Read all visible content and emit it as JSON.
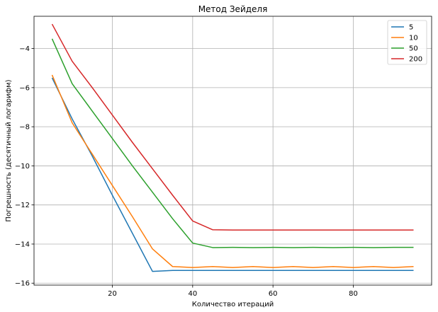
{
  "chart_data": {
    "type": "line",
    "title": "Метод Зейделя",
    "xlabel": "Количество итераций",
    "ylabel": "Погрешность (десятичный логарифм)",
    "xlim": [
      0.5,
      99.5
    ],
    "ylim": [
      -16.1,
      -2.35
    ],
    "xticks": [
      20,
      40,
      60,
      80
    ],
    "yticks": [
      -16,
      -14,
      -12,
      -10,
      -8,
      -6,
      -4
    ],
    "grid": true,
    "legend_position": "top-right",
    "x": [
      5,
      10,
      15,
      20,
      25,
      30,
      35,
      40,
      45,
      50,
      55,
      60,
      65,
      70,
      75,
      80,
      85,
      90,
      95
    ],
    "series": [
      {
        "name": "5",
        "color": "#1f77b4",
        "values": [
          -5.5,
          -7.6,
          -9.5,
          -11.5,
          -13.45,
          -15.4,
          -15.35,
          -15.35,
          -15.35,
          -15.35,
          -15.35,
          -15.35,
          -15.35,
          -15.35,
          -15.35,
          -15.35,
          -15.35,
          -15.35,
          -15.35
        ]
      },
      {
        "name": "10",
        "color": "#ff7f0e",
        "values": [
          -5.35,
          -7.8,
          -9.4,
          -11.0,
          -12.6,
          -14.25,
          -15.15,
          -15.2,
          -15.15,
          -15.2,
          -15.15,
          -15.2,
          -15.15,
          -15.2,
          -15.15,
          -15.2,
          -15.15,
          -15.2,
          -15.15
        ]
      },
      {
        "name": "50",
        "color": "#2ca02c",
        "values": [
          -3.5,
          -5.8,
          -7.2,
          -8.6,
          -10.0,
          -11.35,
          -12.7,
          -13.95,
          -14.18,
          -14.17,
          -14.18,
          -14.17,
          -14.18,
          -14.17,
          -14.18,
          -14.17,
          -14.18,
          -14.17,
          -14.17
        ]
      },
      {
        "name": "200",
        "color": "#d62728",
        "values": [
          -2.75,
          -4.65,
          -6.0,
          -7.4,
          -8.8,
          -10.15,
          -11.5,
          -12.82,
          -13.27,
          -13.28,
          -13.28,
          -13.28,
          -13.28,
          -13.28,
          -13.28,
          -13.28,
          -13.28,
          -13.28,
          -13.28
        ]
      }
    ]
  }
}
